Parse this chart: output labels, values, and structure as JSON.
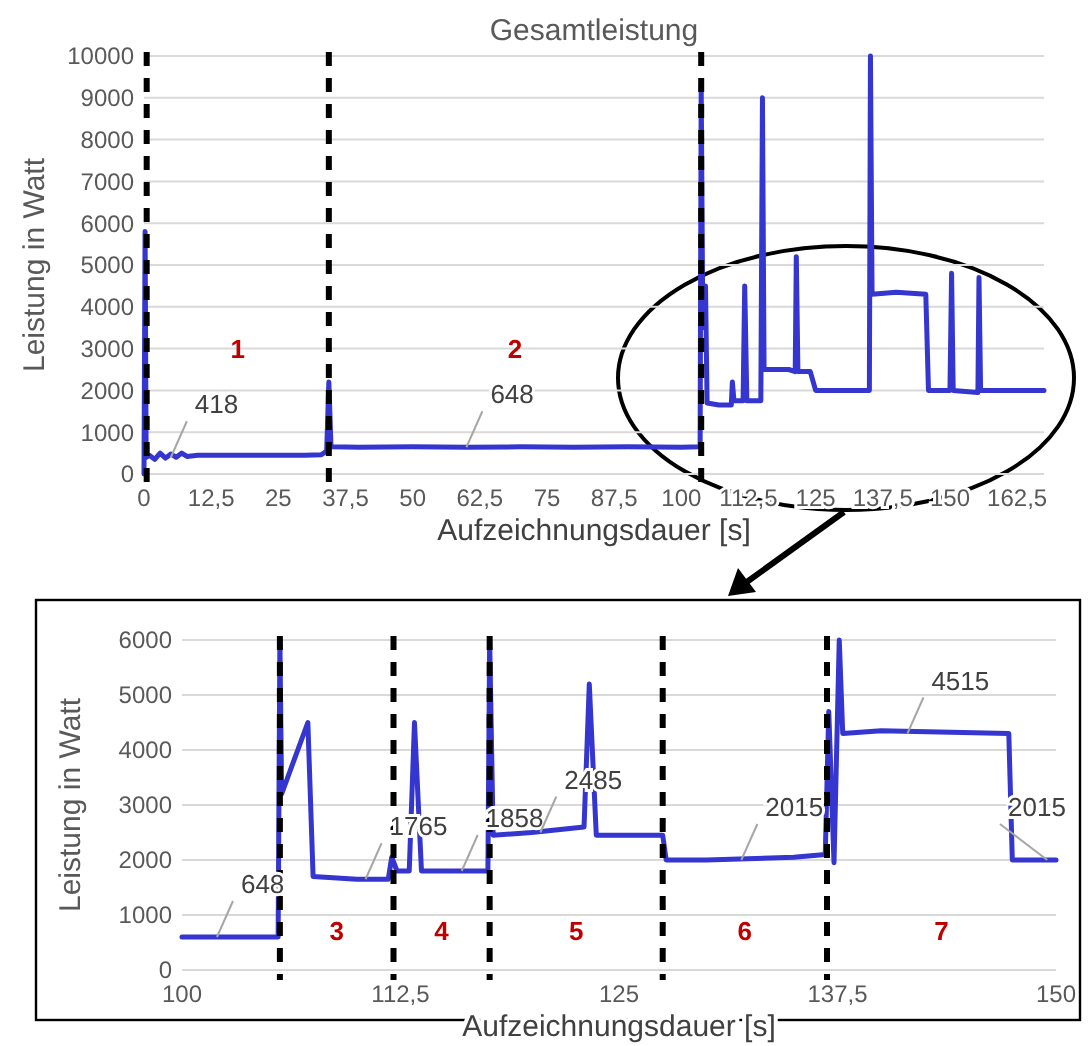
{
  "chart_data": [
    {
      "type": "line",
      "title": "Gesamtleistung",
      "xlabel": "Aufzeichnungsdauer  [s]",
      "ylabel": "Leistung in Watt",
      "xlim": [
        0,
        167.5
      ],
      "ylim": [
        0,
        10000
      ],
      "xticks": [
        0,
        {
          "value": 12.5,
          "label": "12,5"
        },
        25,
        {
          "value": 37.5,
          "label": "37,5"
        },
        50,
        {
          "value": 62.5,
          "label": "62,5"
        },
        75,
        {
          "value": 87.5,
          "label": "87,5"
        },
        100,
        {
          "value": 112.5,
          "label": "112,5"
        },
        125,
        {
          "value": 137.5,
          "label": "137,5"
        },
        150,
        {
          "value": 162.5,
          "label": "162,5"
        }
      ],
      "yticks": [
        0,
        1000,
        2000,
        3000,
        4000,
        5000,
        6000,
        7000,
        8000,
        9000,
        10000
      ],
      "grid": "y",
      "line_style": "solid",
      "marker": "none",
      "series": [
        {
          "color": "#3535d0",
          "x": [
            0,
            0.2,
            0.4,
            1,
            2,
            3,
            4,
            5,
            6,
            7,
            8,
            10,
            15,
            20,
            25,
            30,
            33,
            34,
            34.4,
            34.8,
            40,
            50,
            60,
            70,
            80,
            90,
            100,
            103.5,
            103.7,
            104,
            104.5,
            104.8,
            107,
            109.3,
            109.5,
            109.8,
            111.5,
            111.8,
            112.2,
            114.8,
            115.1,
            115.4,
            120,
            121.2,
            121.4,
            121.7,
            124,
            125,
            130,
            135,
            135.2,
            135.5,
            140,
            145.5,
            146,
            150,
            150.3,
            150.6,
            155.2,
            155.4,
            155.7,
            160,
            167.5
          ],
          "values": [
            0,
            5800,
            400,
            450,
            350,
            500,
            380,
            480,
            400,
            500,
            420,
            450,
            450,
            450,
            450,
            450,
            460,
            550,
            2200,
            650,
            640,
            650,
            640,
            650,
            640,
            650,
            640,
            650,
            9300,
            3500,
            4500,
            1700,
            1650,
            1650,
            2200,
            1750,
            1750,
            4500,
            1750,
            1750,
            9000,
            2500,
            2500,
            2450,
            5200,
            2450,
            2450,
            2000,
            2000,
            2000,
            10000,
            4300,
            4350,
            4300,
            2000,
            2000,
            4800,
            2000,
            1950,
            4700,
            2000,
            2000,
            2000
          ]
        }
      ],
      "ref_lines": [
        {
          "axis": "x",
          "value": 0.5,
          "color": "#000000",
          "line_style": "dashed"
        },
        {
          "axis": "x",
          "value": 34.4,
          "color": "#000000",
          "line_style": "dashed"
        },
        {
          "axis": "x",
          "value": 103.7,
          "color": "#000000",
          "line_style": "dashed"
        }
      ],
      "annotations": [
        "1",
        "2",
        {
          "text": "418",
          "x": 5,
          "y": 400
        },
        {
          "text": "648",
          "x": 60,
          "y": 640
        }
      ]
    },
    {
      "type": "line",
      "xlabel": "Aufzeichnungsdauer [s]",
      "ylabel": "Leistung in Watt",
      "xlim": [
        100,
        150
      ],
      "ylim": [
        0,
        6000
      ],
      "xticks": [
        100,
        {
          "value": 112.5,
          "label": "112,5"
        },
        125,
        {
          "value": 137.5,
          "label": "137,5"
        },
        150
      ],
      "yticks": [
        0,
        1000,
        2000,
        3000,
        4000,
        5000,
        6000
      ],
      "grid": "y",
      "line_style": "solid",
      "marker": "none",
      "series": [
        {
          "color": "#3535d0",
          "x": [
            100,
            105,
            105.5,
            105.6,
            105.7,
            107.2,
            107.5,
            110,
            111.8,
            112,
            112.3,
            113,
            113.3,
            113.7,
            117.5,
            117.6,
            117.8,
            120,
            123,
            123.3,
            123.7,
            127.5,
            127.7,
            130,
            135,
            136.8,
            137,
            137.3,
            137.6,
            137.8,
            140,
            147.3,
            147.5,
            150
          ],
          "values": [
            600,
            600,
            600,
            6000,
            3200,
            4500,
            1700,
            1650,
            1650,
            2050,
            1800,
            1800,
            4500,
            1800,
            1800,
            6000,
            2450,
            2500,
            2600,
            5200,
            2450,
            2450,
            2000,
            2000,
            2050,
            2100,
            4700,
            1950,
            6000,
            4300,
            4350,
            4300,
            2000,
            2000
          ]
        }
      ],
      "ref_lines": [
        {
          "axis": "x",
          "value": 105.6,
          "color": "#000000",
          "line_style": "dashed"
        },
        {
          "axis": "x",
          "value": 112.1,
          "color": "#000000",
          "line_style": "dashed"
        },
        {
          "axis": "x",
          "value": 117.6,
          "color": "#000000",
          "line_style": "dashed"
        },
        {
          "axis": "x",
          "value": 127.5,
          "color": "#000000",
          "line_style": "dashed"
        },
        {
          "axis": "x",
          "value": 136.9,
          "color": "#000000",
          "line_style": "dashed"
        }
      ],
      "annotations": [
        "3",
        "4",
        "5",
        "6",
        "7",
        {
          "text": "648",
          "x": 102,
          "y": 600
        },
        {
          "text": "1765",
          "x": 110.5,
          "y": 1650
        },
        {
          "text": "1858",
          "x": 116,
          "y": 1800
        },
        {
          "text": "2485",
          "x": 120.5,
          "y": 2500
        },
        {
          "text": "2015",
          "x": 132,
          "y": 2000
        },
        {
          "text": "4515",
          "x": 141.5,
          "y": 4300
        },
        {
          "text": "2015",
          "x": 149.5,
          "y": 2000
        }
      ]
    }
  ]
}
